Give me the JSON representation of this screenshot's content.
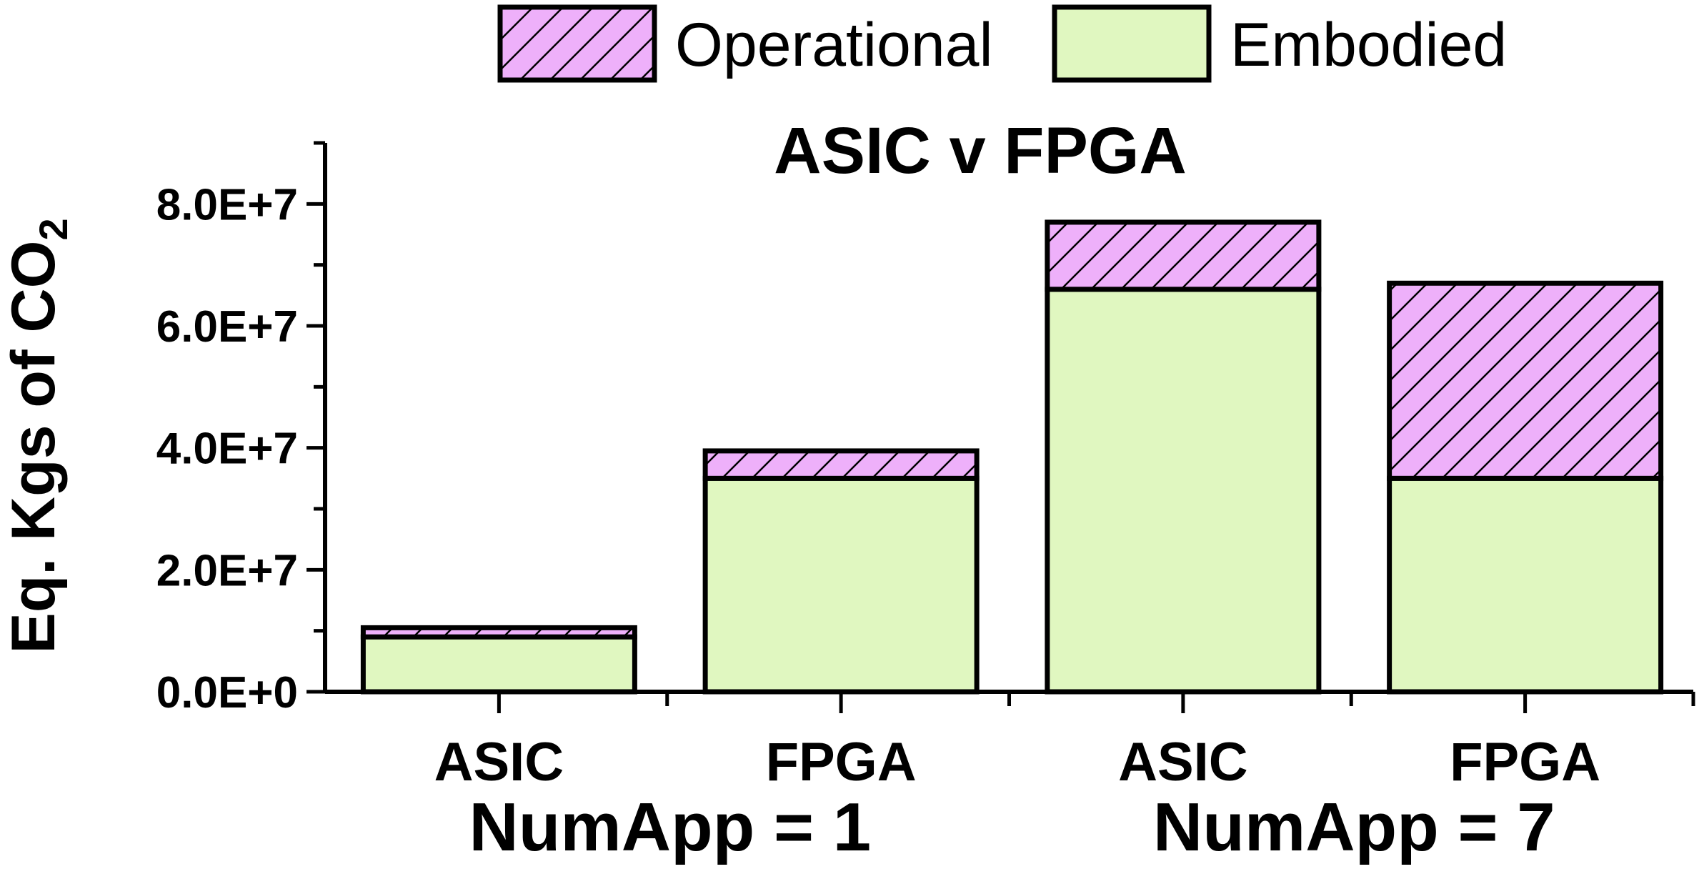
{
  "chart_data": {
    "type": "bar",
    "stacked": true,
    "title": "ASIC v FPGA",
    "ylabel": "Eq. Kgs of CO",
    "ylabel_subscript": "2",
    "xlabel": "",
    "ylim": [
      0,
      90000000
    ],
    "yticks": [
      0,
      20000000,
      40000000,
      60000000,
      80000000
    ],
    "ytick_labels": [
      "0.0E+0",
      "2.0E+7",
      "4.0E+7",
      "6.0E+7",
      "8.0E+7"
    ],
    "categories": [
      "ASIC",
      "FPGA",
      "ASIC",
      "FPGA"
    ],
    "groups": [
      {
        "label": "NumApp = 1",
        "category_indices": [
          0,
          1
        ]
      },
      {
        "label": "NumApp = 7",
        "category_indices": [
          2,
          3
        ]
      }
    ],
    "series": [
      {
        "name": "Embodied",
        "values": [
          9000000,
          35000000,
          66000000,
          35000000
        ],
        "color": "#e0f7c0",
        "hatch": false
      },
      {
        "name": "Operational",
        "values": [
          1500000,
          4500000,
          11000000,
          32000000
        ],
        "color": "#eeb0fa",
        "hatch": true
      }
    ],
    "legend_order": [
      "Operational",
      "Embodied"
    ],
    "legend_position": "top",
    "grid": false
  }
}
